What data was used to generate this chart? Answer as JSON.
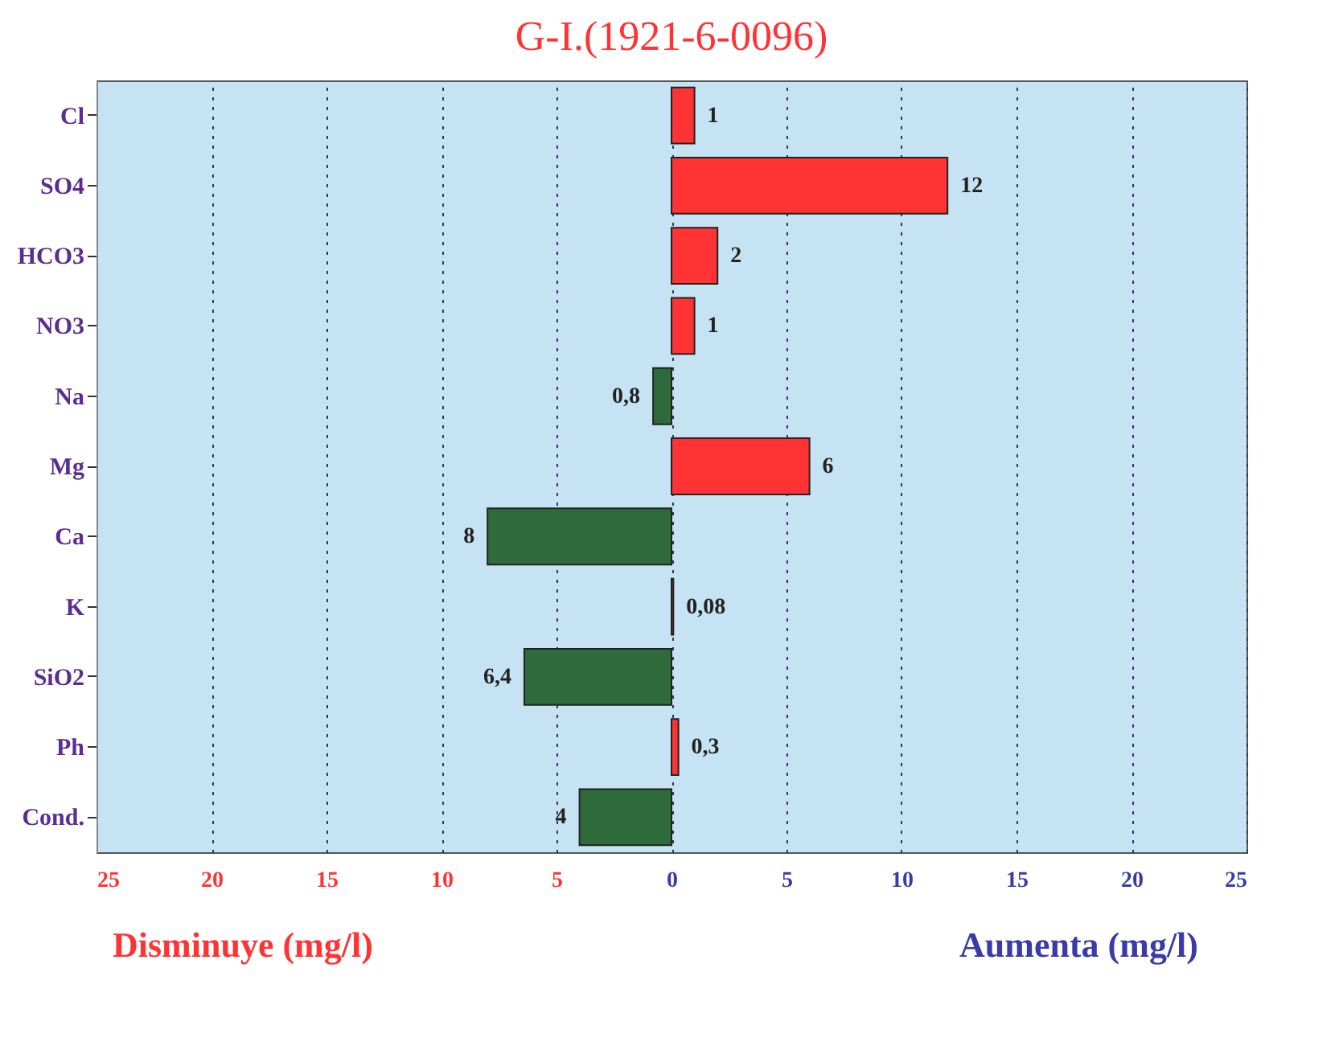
{
  "chart_data": {
    "type": "bar",
    "orientation": "horizontal",
    "title": "G-I.(1921-6-0096)",
    "categories": [
      "Cl",
      "SO4",
      "HCO3",
      "NO3",
      "Na",
      "Mg",
      "Ca",
      "K",
      "SiO2",
      "Ph",
      "Cond."
    ],
    "values": [
      1,
      12,
      2,
      1,
      0.8,
      6,
      8,
      0.08,
      6.4,
      0.3,
      4
    ],
    "base": [
      0,
      0,
      0,
      0,
      -0.8,
      0,
      -8,
      0,
      -6.4,
      0,
      -4
    ],
    "colors": [
      "#ff3333",
      "#ff3333",
      "#ff3333",
      "#ff3333",
      "#2e6b3a",
      "#ff3333",
      "#2e6b3a",
      "#ff3333",
      "#2e6b3a",
      "#ff3333",
      "#2e6b3a"
    ],
    "value_labels": [
      "1",
      "12",
      "2",
      "1",
      "0,8",
      "6",
      "8",
      "0,08",
      "6,4",
      "0,3",
      "4"
    ],
    "xlim": [
      -25,
      25
    ],
    "xticks": [
      {
        "value": -25,
        "label": "25"
      },
      {
        "value": -20,
        "label": "20"
      },
      {
        "value": -15,
        "label": "15"
      },
      {
        "value": -10,
        "label": "10"
      },
      {
        "value": -5,
        "label": "5"
      },
      0,
      5,
      10,
      15,
      20,
      25
    ],
    "annotations": [
      "Disminuye (mg/l)",
      "Aumenta (mg/l)"
    ],
    "grid": "x"
  }
}
